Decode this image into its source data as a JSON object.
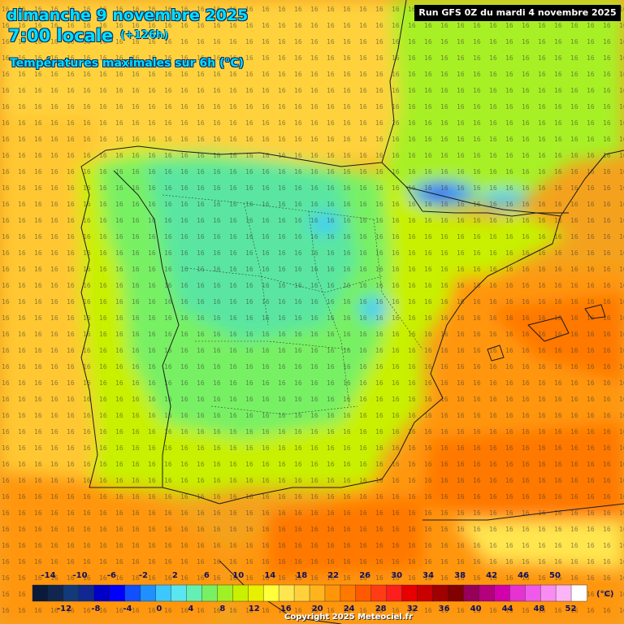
{
  "header": {
    "date": "dimanche 9 novembre 2025",
    "time": "7:00 locale",
    "offset": "(+126h)",
    "subtitle": "Températures maximales sur 6h (°C)"
  },
  "run_label": "Run GFS 0Z du mardi 4 novembre 2025",
  "copyright": "Copyright 2025 Meteociel.fr",
  "legend": {
    "unit": "(°C)",
    "top_ticks": [
      "-14",
      "-10",
      "-6",
      "-2",
      "2",
      "6",
      "10",
      "14",
      "18",
      "22",
      "26",
      "30",
      "34",
      "38",
      "42",
      "46",
      "50"
    ],
    "bottom_ticks": [
      "-12",
      "-8",
      "-4",
      "0",
      "4",
      "8",
      "12",
      "16",
      "20",
      "24",
      "28",
      "32",
      "36",
      "40",
      "44",
      "48",
      "52"
    ],
    "colors": [
      "#0a1a3a",
      "#10264f",
      "#123a7a",
      "#10288f",
      "#0000c8",
      "#0000ff",
      "#1050ff",
      "#1e90ff",
      "#3cc8ff",
      "#5ae6f0",
      "#64f0b4",
      "#78f064",
      "#a0f028",
      "#c8f000",
      "#e6f000",
      "#ffff3c",
      "#ffe650",
      "#ffd23c",
      "#ffb41e",
      "#ff960a",
      "#ff7800",
      "#ff5a00",
      "#ff3c14",
      "#ff1e1e",
      "#e60000",
      "#c80000",
      "#a00000",
      "#820000",
      "#96005a",
      "#b4007d",
      "#d200aa",
      "#e632d2",
      "#f05aeb",
      "#f88cf0",
      "#fcb4f8",
      "#ffffff"
    ]
  },
  "map": {
    "region": "Péninsule Ibérique",
    "water_color": "#f4a020",
    "land_color": "#64e66e"
  }
}
